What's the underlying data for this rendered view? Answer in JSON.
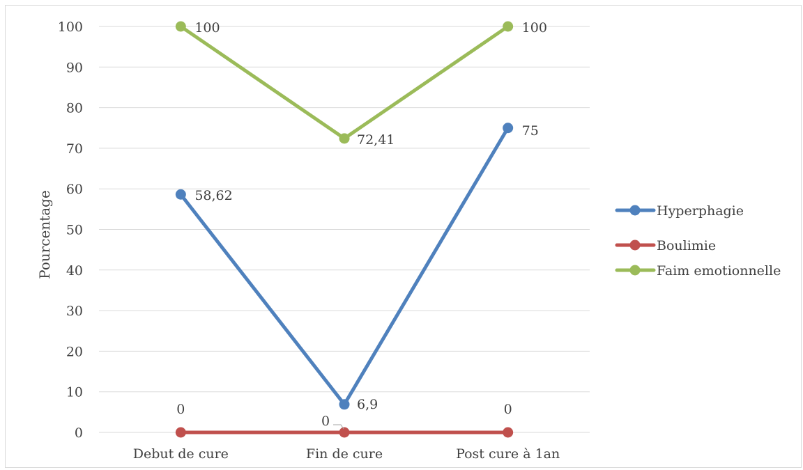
{
  "chart_data": {
    "type": "line",
    "title": "",
    "xlabel": "",
    "ylabel": "Pourcentage",
    "ylim": [
      0,
      100
    ],
    "yticks": [
      0,
      10,
      20,
      30,
      40,
      50,
      60,
      70,
      80,
      90,
      100
    ],
    "grid": true,
    "legend_position": "right",
    "categories": [
      "Debut de cure",
      "Fin de cure",
      "Post cure à 1an"
    ],
    "series": [
      {
        "name": "Hyperphagie",
        "values": [
          58.62,
          6.9,
          75
        ],
        "labels": [
          "58,62",
          "6,9",
          "75"
        ],
        "color": "#4f81bd"
      },
      {
        "name": "Boulimie",
        "values": [
          0,
          0,
          0
        ],
        "labels": [
          "0",
          "0",
          "0"
        ],
        "color": "#c0504d"
      },
      {
        "name": "Faim emotionnelle",
        "values": [
          100,
          72.41,
          100
        ],
        "labels": [
          "100",
          "72,41",
          "100"
        ],
        "color": "#9bbb59"
      }
    ]
  }
}
